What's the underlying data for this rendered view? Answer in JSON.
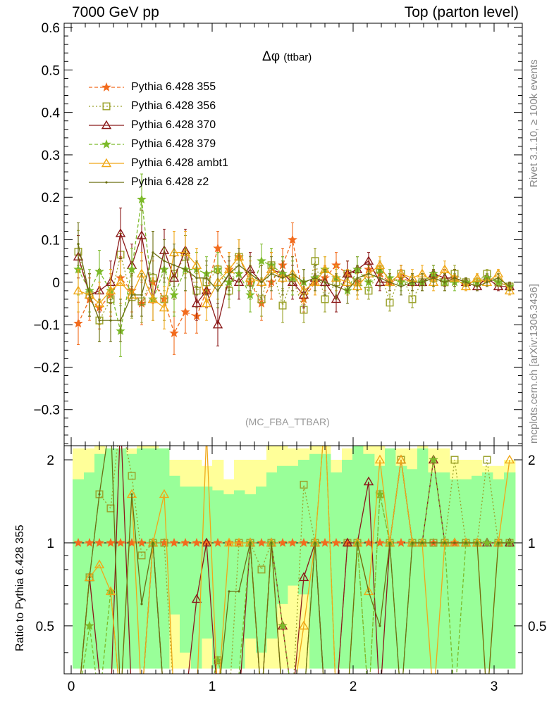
{
  "header": {
    "left": "7000 GeV pp",
    "right": "Top (parton level)"
  },
  "side": {
    "rivet": "Rivet 3.1.10, ≥ 100k events",
    "url": "mcplots.cern.ch [arXiv:1306.3436]"
  },
  "plot_title": {
    "main": "Δφ",
    "sub": "(ttbar)"
  },
  "watermark": "(MC_FBA_TTBAR)",
  "ratio_ylabel": "Ratio to Pythia 6.428 355",
  "chart_data": {
    "type": "line",
    "xlim": [
      -0.05,
      3.2
    ],
    "ylim": [
      -0.385,
      0.61
    ],
    "ratio_ylim": [
      0.335,
      2.25
    ],
    "x_ticks": [
      0,
      1,
      2,
      3
    ],
    "y_ticks": [
      -0.3,
      -0.2,
      -0.1,
      0,
      0.1,
      0.2,
      0.3,
      0.4,
      0.5,
      0.6
    ],
    "y_tick_labels": [
      "−0.3",
      "−0.2",
      "−0.1",
      "0",
      "0.1",
      "0.2",
      "0.3",
      "0.4",
      "0.5",
      "0.6"
    ],
    "ratio_ticks": [
      0.5,
      1,
      2
    ],
    "ratio_tick_labels": [
      "0.5",
      "1",
      "2"
    ],
    "x": [
      0.05,
      0.13,
      0.2,
      0.28,
      0.35,
      0.43,
      0.5,
      0.58,
      0.66,
      0.73,
      0.81,
      0.89,
      0.96,
      1.04,
      1.12,
      1.19,
      1.27,
      1.35,
      1.42,
      1.5,
      1.57,
      1.65,
      1.73,
      1.8,
      1.88,
      1.96,
      2.03,
      2.11,
      2.19,
      2.26,
      2.34,
      2.42,
      2.49,
      2.57,
      2.65,
      2.72,
      2.8,
      2.88,
      2.95,
      3.03,
      3.11
    ],
    "series": [
      {
        "name": "Pythia 6.428 355",
        "color": "#f26b1d",
        "marker": "star",
        "dash": "5,3",
        "values": [
          -0.097,
          -0.04,
          -0.06,
          -0.03,
          0.01,
          -0.02,
          -0.05,
          0.0,
          -0.04,
          -0.12,
          -0.07,
          -0.08,
          -0.02,
          0.08,
          0.03,
          0.06,
          0.0,
          -0.05,
          0.0,
          0.04,
          0.1,
          -0.04,
          0.0,
          0.01,
          0.04,
          0.02,
          0.0,
          0.03,
          0.02,
          0.0,
          0.01,
          0.0,
          0.0,
          0.01,
          0.0,
          0.01,
          0.0,
          0.0,
          0.01,
          0.0,
          -0.01
        ],
        "errors": [
          0.05,
          0.05,
          0.05,
          0.05,
          0.05,
          0.05,
          0.05,
          0.05,
          0.05,
          0.05,
          0.05,
          0.04,
          0.04,
          0.04,
          0.04,
          0.04,
          0.04,
          0.04,
          0.04,
          0.04,
          0.04,
          0.03,
          0.03,
          0.03,
          0.03,
          0.03,
          0.03,
          0.02,
          0.02,
          0.02,
          0.02,
          0.02,
          0.02,
          0.02,
          0.02,
          0.02,
          0.01,
          0.01,
          0.01,
          0.01,
          0.01
        ]
      },
      {
        "name": "Pythia 6.428 356",
        "color": "#9aa12a",
        "marker": "square",
        "dash": "2,3",
        "values": [
          0.072,
          -0.03,
          -0.09,
          -0.04,
          0.065,
          -0.035,
          -0.045,
          0.01,
          -0.04,
          0.02,
          0.06,
          -0.02,
          0.0,
          0.03,
          -0.02,
          0.06,
          0.0,
          -0.04,
          0.04,
          -0.055,
          0.01,
          -0.065,
          0.05,
          -0.04,
          0.0,
          0.02,
          0.0,
          -0.02,
          0.03,
          -0.048,
          0.02,
          -0.04,
          0.0,
          0.01,
          0.0,
          0.02,
          0.0,
          0.0,
          0.02,
          0.0,
          -0.01
        ],
        "errors": [
          0.05,
          0.05,
          0.05,
          0.05,
          0.05,
          0.05,
          0.05,
          0.05,
          0.05,
          0.05,
          0.05,
          0.04,
          0.04,
          0.04,
          0.04,
          0.04,
          0.04,
          0.04,
          0.04,
          0.04,
          0.04,
          0.03,
          0.03,
          0.03,
          0.03,
          0.03,
          0.03,
          0.02,
          0.02,
          0.02,
          0.02,
          0.02,
          0.02,
          0.02,
          0.02,
          0.02,
          0.01,
          0.01,
          0.01,
          0.01,
          0.01
        ]
      },
      {
        "name": "Pythia 6.428 370",
        "color": "#8b1a1a",
        "marker": "triangle",
        "dash": "",
        "values": [
          0.06,
          -0.03,
          -0.02,
          0.0,
          0.115,
          0.04,
          0.11,
          -0.04,
          0.075,
          0.01,
          0.075,
          -0.05,
          -0.02,
          -0.1,
          0.01,
          0.0,
          0.03,
          0.0,
          0.03,
          0.02,
          0.0,
          -0.03,
          0.01,
          0.0,
          -0.04,
          0.02,
          0.03,
          0.05,
          0.0,
          0.0,
          0.02,
          0.0,
          0.0,
          0.02,
          0.01,
          0.01,
          0.0,
          -0.01,
          0.01,
          -0.01,
          -0.01
        ],
        "errors": [
          0.05,
          0.05,
          0.05,
          0.05,
          0.06,
          0.05,
          0.06,
          0.05,
          0.05,
          0.05,
          0.05,
          0.04,
          0.04,
          0.05,
          0.04,
          0.04,
          0.04,
          0.04,
          0.04,
          0.04,
          0.04,
          0.03,
          0.03,
          0.03,
          0.03,
          0.03,
          0.03,
          0.02,
          0.02,
          0.02,
          0.02,
          0.02,
          0.02,
          0.02,
          0.02,
          0.02,
          0.01,
          0.01,
          0.01,
          0.01,
          0.01
        ]
      },
      {
        "name": "Pythia 6.428 379",
        "color": "#7cba2a",
        "marker": "star",
        "dash": "5,3",
        "values": [
          0.03,
          -0.02,
          0.025,
          -0.02,
          -0.115,
          0.03,
          0.195,
          -0.04,
          0.03,
          -0.03,
          0.03,
          0.03,
          0.02,
          0.03,
          0.0,
          0.02,
          -0.03,
          0.05,
          0.04,
          0.02,
          0.01,
          0.0,
          0.01,
          0.03,
          0.01,
          -0.02,
          0.03,
          0.0,
          0.03,
          0.01,
          0.0,
          0.0,
          0.0,
          0.02,
          0.0,
          0.0,
          0.0,
          0.0,
          0.01,
          0.0,
          -0.01
        ],
        "errors": [
          0.06,
          0.05,
          0.05,
          0.05,
          0.06,
          0.05,
          0.06,
          0.05,
          0.05,
          0.05,
          0.05,
          0.04,
          0.04,
          0.04,
          0.04,
          0.04,
          0.04,
          0.04,
          0.04,
          0.04,
          0.04,
          0.03,
          0.03,
          0.03,
          0.03,
          0.03,
          0.03,
          0.02,
          0.02,
          0.02,
          0.02,
          0.02,
          0.02,
          0.02,
          0.02,
          0.02,
          0.01,
          0.01,
          0.01,
          0.01,
          0.01
        ]
      },
      {
        "name": "Pythia 6.428 ambt1",
        "color": "#f0a818",
        "marker": "triangle",
        "dash": "",
        "values": [
          -0.02,
          -0.03,
          -0.05,
          -0.02,
          0.0,
          -0.03,
          0.02,
          -0.04,
          -0.06,
          0.07,
          0.07,
          0.04,
          -0.05,
          0.0,
          0.03,
          0.06,
          0.01,
          0.0,
          0.03,
          0.01,
          0.02,
          -0.02,
          0.0,
          0.03,
          0.01,
          0.0,
          -0.01,
          0.02,
          0.04,
          0.0,
          0.02,
          0.01,
          0.02,
          0.0,
          0.03,
          0.01,
          -0.01,
          0.01,
          0.0,
          0.02,
          -0.02
        ],
        "errors": [
          0.05,
          0.05,
          0.05,
          0.05,
          0.05,
          0.05,
          0.05,
          0.05,
          0.05,
          0.05,
          0.05,
          0.04,
          0.04,
          0.04,
          0.04,
          0.04,
          0.04,
          0.04,
          0.04,
          0.04,
          0.04,
          0.03,
          0.03,
          0.03,
          0.03,
          0.03,
          0.03,
          0.02,
          0.02,
          0.02,
          0.02,
          0.02,
          0.02,
          0.02,
          0.02,
          0.02,
          0.01,
          0.01,
          0.01,
          0.01,
          0.01
        ]
      },
      {
        "name": "Pythia 6.428 z2",
        "color": "#6b6f12",
        "marker": "dot",
        "dash": "",
        "values": [
          0.09,
          -0.03,
          -0.09,
          -0.09,
          -0.09,
          -0.03,
          -0.03,
          0.07,
          0.05,
          0.04,
          0.03,
          0.01,
          0.01,
          -0.02,
          0.02,
          0.04,
          0.02,
          0.0,
          0.02,
          0.01,
          0.02,
          0.0,
          0.01,
          0.0,
          -0.01,
          -0.02,
          0.01,
          0.02,
          0.01,
          0.0,
          -0.01,
          0.0,
          0.0,
          0.01,
          0.0,
          0.01,
          0.0,
          -0.01,
          0.0,
          0.01,
          -0.01
        ],
        "errors": [
          0.05,
          0.05,
          0.05,
          0.05,
          0.05,
          0.05,
          0.05,
          0.05,
          0.05,
          0.05,
          0.05,
          0.04,
          0.04,
          0.04,
          0.04,
          0.04,
          0.04,
          0.04,
          0.04,
          0.04,
          0.04,
          0.03,
          0.03,
          0.03,
          0.03,
          0.03,
          0.03,
          0.02,
          0.02,
          0.02,
          0.02,
          0.02,
          0.02,
          0.02,
          0.02,
          0.02,
          0.01,
          0.01,
          0.01,
          0.01,
          0.01
        ]
      }
    ],
    "ratio_bands": {
      "yellow": [
        [
          0.35,
          2.2
        ],
        [
          0.35,
          2.2
        ],
        [
          0.35,
          2.25
        ],
        [
          0.35,
          2.2
        ],
        [
          0.35,
          2.2
        ],
        [
          0.35,
          2.2
        ],
        [
          0.35,
          2.25
        ],
        [
          0.35,
          2.25
        ],
        [
          0.35,
          2.2
        ],
        [
          0.35,
          2.0
        ],
        [
          0.35,
          2.0
        ],
        [
          0.35,
          2.0
        ],
        [
          0.35,
          1.9
        ],
        [
          0.35,
          2.0
        ],
        [
          0.35,
          1.7
        ],
        [
          0.35,
          2.0
        ],
        [
          0.35,
          2.0
        ],
        [
          0.35,
          2.0
        ],
        [
          0.35,
          2.25
        ],
        [
          0.35,
          2.25
        ],
        [
          0.35,
          2.2
        ],
        [
          0.35,
          2.2
        ],
        [
          0.35,
          2.25
        ],
        [
          0.35,
          2.25
        ],
        [
          0.35,
          2.0
        ],
        [
          0.35,
          2.2
        ],
        [
          0.35,
          2.25
        ],
        [
          0.35,
          2.25
        ],
        [
          0.35,
          2.25
        ],
        [
          0.35,
          2.2
        ],
        [
          0.35,
          2.2
        ],
        [
          0.35,
          2.2
        ],
        [
          0.35,
          2.25
        ],
        [
          0.35,
          2.2
        ],
        [
          0.35,
          2.2
        ],
        [
          0.35,
          2.0
        ],
        [
          0.35,
          2.0
        ],
        [
          0.35,
          2.0
        ],
        [
          0.35,
          1.9
        ],
        [
          0.35,
          1.9
        ],
        [
          0.35,
          2.0
        ]
      ],
      "green": [
        [
          0.35,
          1.7
        ],
        [
          0.35,
          1.8
        ],
        [
          0.35,
          2.1
        ],
        [
          0.35,
          2.2
        ],
        [
          0.35,
          2.2
        ],
        [
          0.35,
          2.1
        ],
        [
          0.35,
          2.2
        ],
        [
          0.35,
          2.2
        ],
        [
          0.35,
          2.2
        ],
        [
          0.55,
          1.75
        ],
        [
          0.4,
          1.6
        ],
        [
          0.35,
          1.6
        ],
        [
          0.45,
          1.6
        ],
        [
          0.35,
          1.55
        ],
        [
          0.35,
          1.5
        ],
        [
          0.35,
          1.55
        ],
        [
          0.45,
          1.5
        ],
        [
          0.4,
          1.6
        ],
        [
          0.45,
          1.8
        ],
        [
          0.6,
          1.9
        ],
        [
          0.7,
          1.9
        ],
        [
          0.65,
          2.0
        ],
        [
          0.35,
          2.1
        ],
        [
          0.35,
          2.1
        ],
        [
          0.35,
          1.8
        ],
        [
          0.35,
          2.0
        ],
        [
          0.35,
          2.25
        ],
        [
          0.35,
          2.1
        ],
        [
          0.35,
          1.9
        ],
        [
          0.35,
          2.2
        ],
        [
          0.35,
          1.9
        ],
        [
          0.35,
          1.85
        ],
        [
          0.35,
          2.2
        ],
        [
          0.35,
          1.8
        ],
        [
          0.35,
          1.8
        ],
        [
          0.35,
          1.7
        ],
        [
          0.35,
          1.7
        ],
        [
          0.35,
          1.75
        ],
        [
          0.35,
          1.8
        ],
        [
          0.35,
          1.7
        ],
        [
          0.35,
          1.8
        ]
      ]
    }
  }
}
